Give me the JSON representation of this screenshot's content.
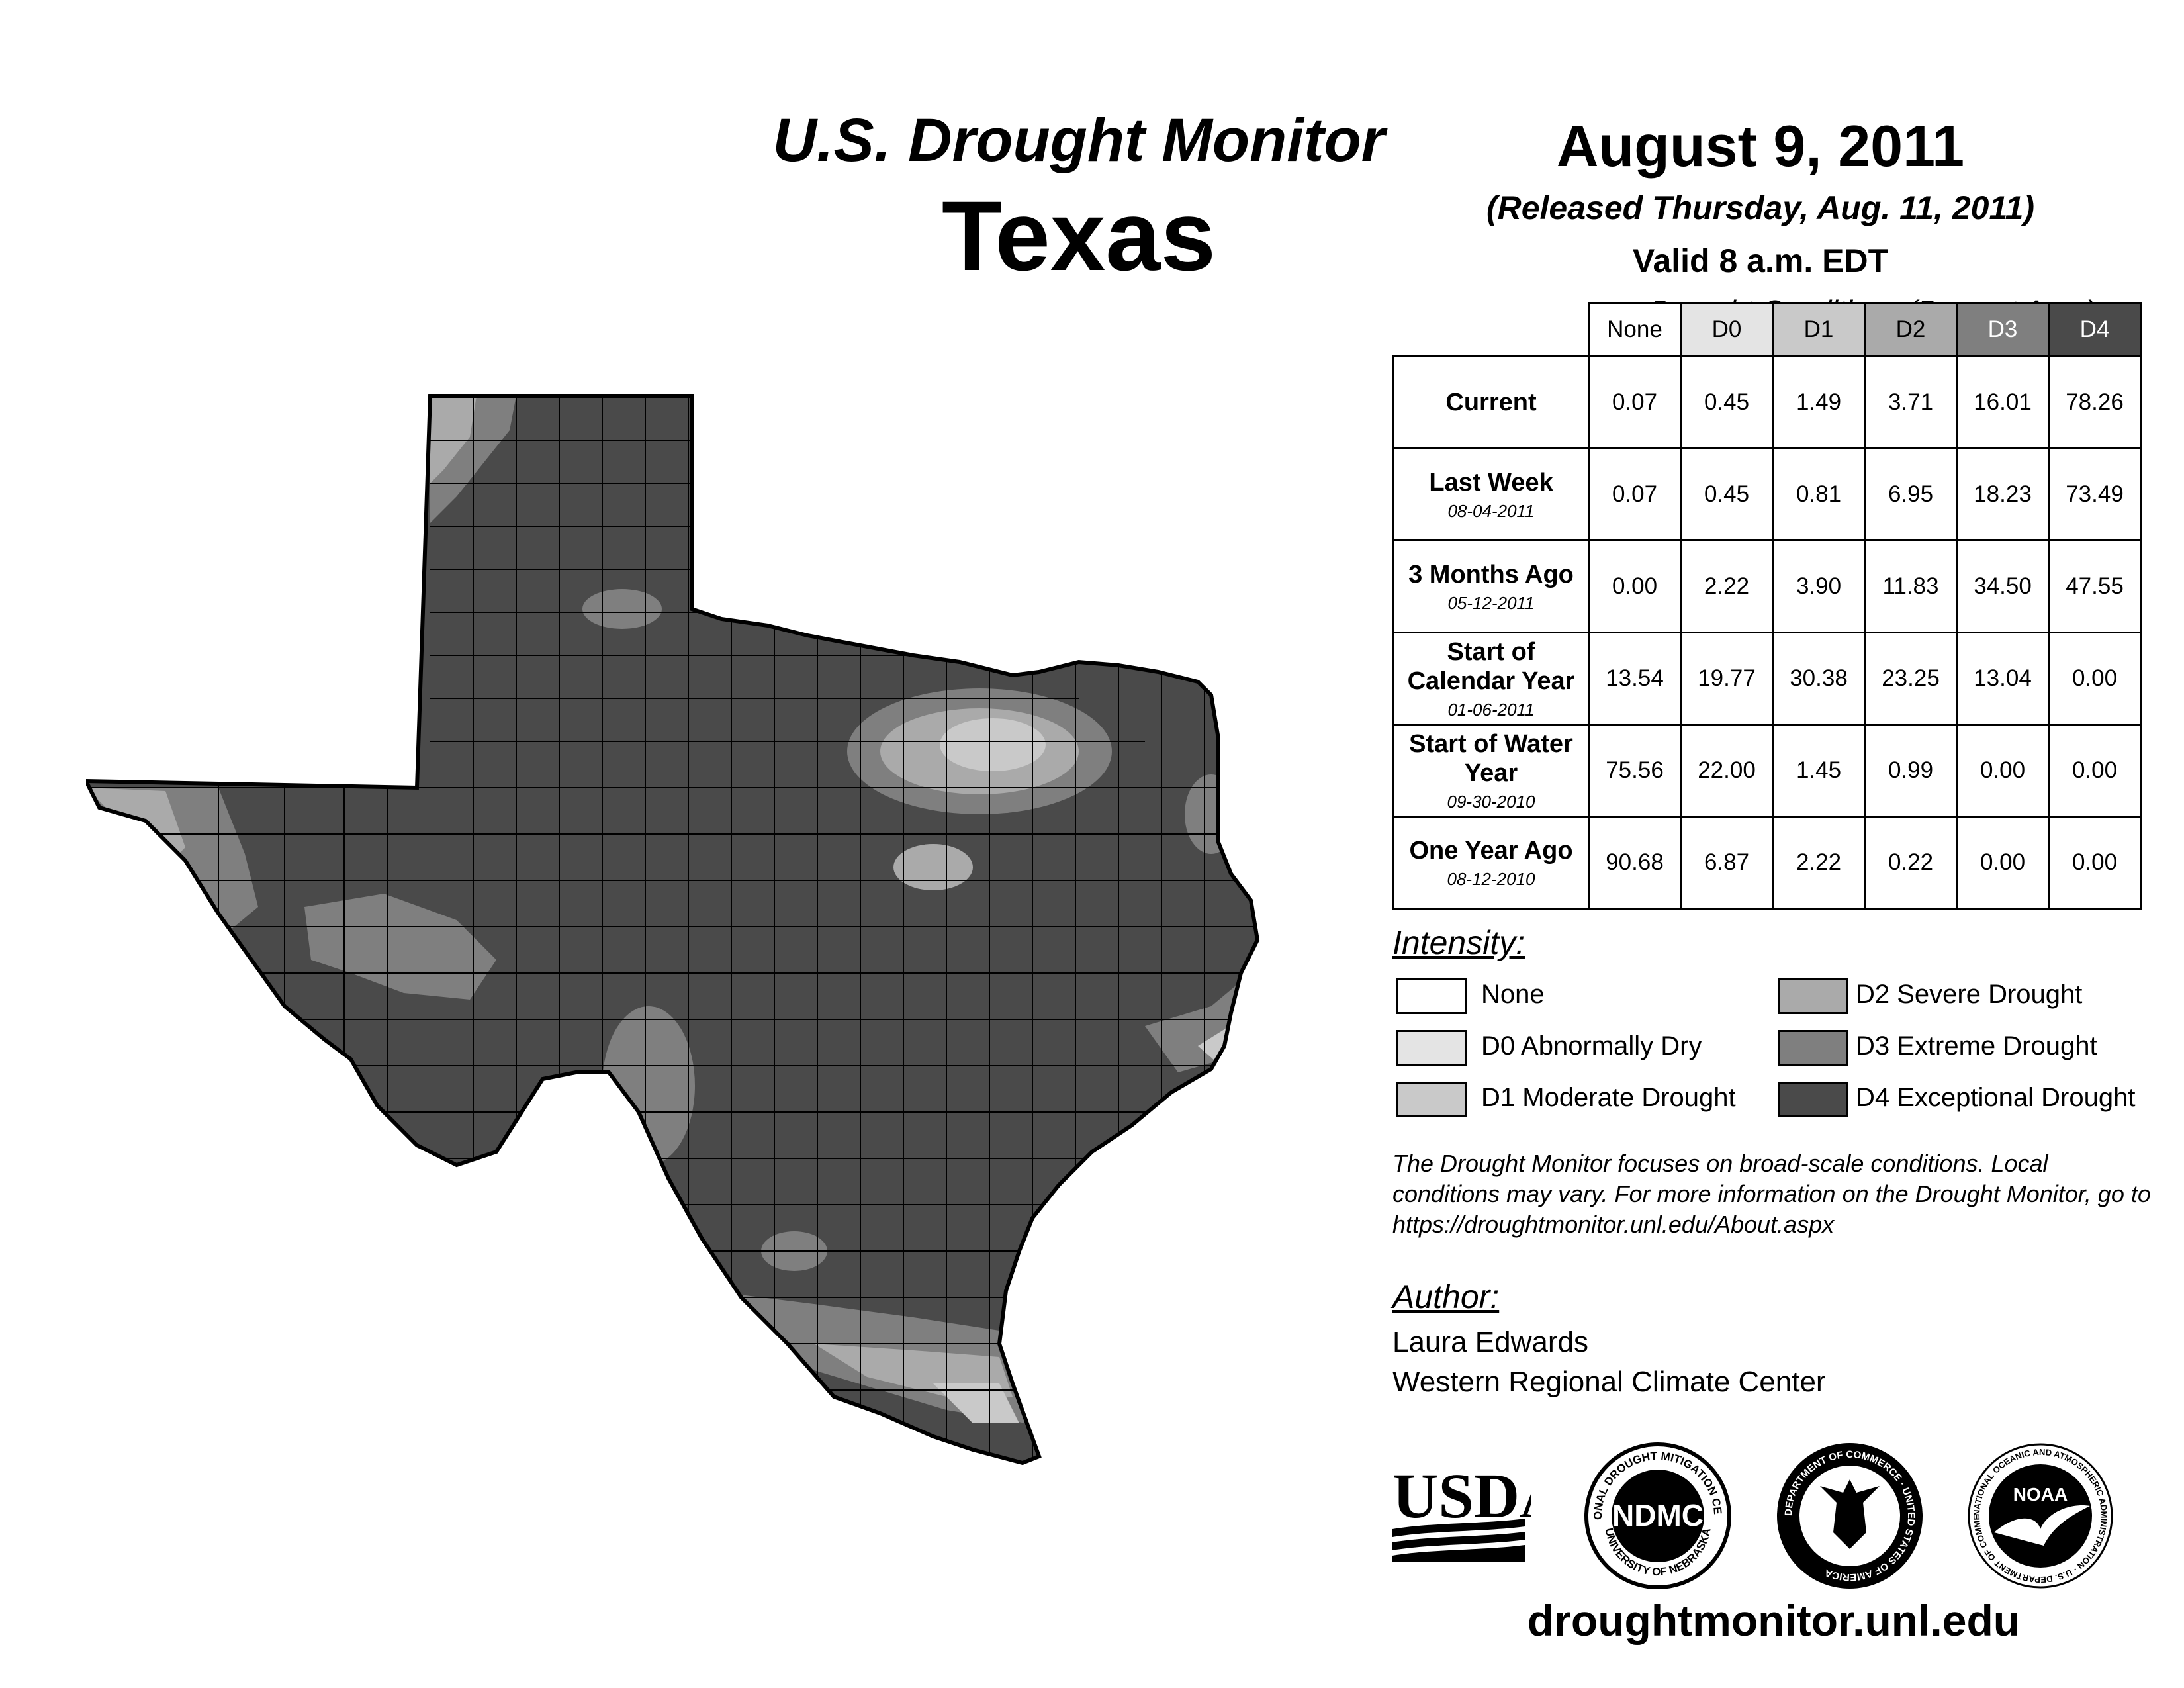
{
  "header": {
    "subtitle": "U.S. Drought Monitor",
    "title": "Texas",
    "date": "August 9, 2011",
    "released": "(Released Thursday, Aug. 11, 2011)",
    "valid": "Valid 8 a.m. EDT"
  },
  "table": {
    "caption": "Drought Conditions (Percent Area)",
    "columns": [
      "None",
      "D0",
      "D1",
      "D2",
      "D3",
      "D4"
    ],
    "rows": [
      {
        "label": "Current",
        "date": "",
        "values": [
          "0.07",
          "0.45",
          "1.49",
          "3.71",
          "16.01",
          "78.26"
        ]
      },
      {
        "label": "Last Week",
        "date": "08-04-2011",
        "values": [
          "0.07",
          "0.45",
          "0.81",
          "6.95",
          "18.23",
          "73.49"
        ]
      },
      {
        "label": "3 Months Ago",
        "date": "05-12-2011",
        "values": [
          "0.00",
          "2.22",
          "3.90",
          "11.83",
          "34.50",
          "47.55"
        ]
      },
      {
        "label": "Start of Calendar Year",
        "date": "01-06-2011",
        "values": [
          "13.54",
          "19.77",
          "30.38",
          "23.25",
          "13.04",
          "0.00"
        ]
      },
      {
        "label": "Start of Water Year",
        "date": "09-30-2010",
        "values": [
          "75.56",
          "22.00",
          "1.45",
          "0.99",
          "0.00",
          "0.00"
        ]
      },
      {
        "label": "One Year Ago",
        "date": "08-12-2010",
        "values": [
          "90.68",
          "6.87",
          "2.22",
          "0.22",
          "0.00",
          "0.00"
        ]
      }
    ]
  },
  "legend": {
    "title": "Intensity:",
    "items": [
      {
        "label": "None",
        "color": "#ffffff"
      },
      {
        "label": "D0 Abnormally Dry",
        "color": "#e4e4e4"
      },
      {
        "label": "D1 Moderate Drought",
        "color": "#c9c9c9"
      },
      {
        "label": "D2 Severe Drought",
        "color": "#aaaaaa"
      },
      {
        "label": "D3 Extreme Drought",
        "color": "#7f7f7f"
      },
      {
        "label": "D4 Exceptional Drought",
        "color": "#4a4a4a"
      }
    ]
  },
  "header_colors": {
    "None": "#ffffff",
    "D0": "#e4e4e4",
    "D1": "#c9c9c9",
    "D2": "#aaaaaa",
    "D3": "#7f7f7f",
    "D4": "#4a4a4a"
  },
  "note": "The Drought Monitor focuses on broad-scale conditions. Local conditions may vary. For more information on the Drought Monitor, go to https://droughtmonitor.unl.edu/About.aspx",
  "author": {
    "title": "Author:",
    "name": "Laura Edwards",
    "org": "Western Regional Climate Center"
  },
  "logos": {
    "usda": "USDA",
    "ndmc": "NDMC",
    "ndmc_ring_top": "NATIONAL DROUGHT MITIGATION CENTER",
    "ndmc_ring_bottom": "UNIVERSITY OF NEBRASKA",
    "doc_ring": "DEPARTMENT OF COMMERCE · UNITED STATES OF AMERICA",
    "noaa": "NOAA",
    "noaa_ring": "NATIONAL OCEANIC AND ATMOSPHERIC ADMINISTRATION · U.S. DEPARTMENT OF COMMERCE"
  },
  "url": "droughtmonitor.unl.edu"
}
